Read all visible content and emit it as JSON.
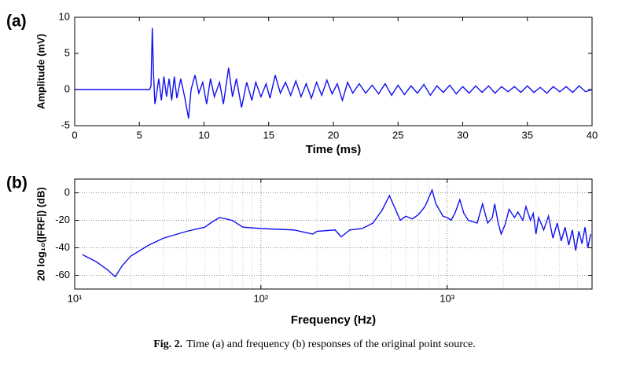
{
  "chart_data": [
    {
      "type": "line",
      "panel_label": "(a)",
      "x_label": "Time (ms)",
      "y_label": "Amplitude (mV)",
      "xlim": [
        0,
        40
      ],
      "xticks": [
        0,
        5,
        10,
        15,
        20,
        25,
        30,
        35,
        40
      ],
      "ylim": [
        -5,
        10
      ],
      "yticks": [
        -5,
        0,
        5,
        10
      ],
      "grid": false,
      "log_x": false,
      "series": [
        {
          "color": "#1010f0",
          "x": [
            0,
            5.8,
            5.9,
            6.0,
            6.1,
            6.2,
            6.3,
            6.5,
            6.7,
            6.9,
            7.1,
            7.3,
            7.5,
            7.7,
            7.9,
            8.2,
            8.5,
            8.8,
            9.0,
            9.3,
            9.6,
            9.9,
            10.2,
            10.5,
            10.8,
            11.2,
            11.5,
            11.9,
            12.2,
            12.5,
            12.9,
            13.3,
            13.7,
            14.0,
            14.4,
            14.8,
            15.1,
            15.5,
            15.9,
            16.3,
            16.7,
            17.1,
            17.5,
            17.9,
            18.3,
            18.7,
            19.1,
            19.5,
            19.9,
            20.3,
            20.7,
            21.1,
            21.5,
            22,
            22.5,
            23,
            23.5,
            24,
            24.5,
            25,
            25.5,
            26,
            26.5,
            27,
            27.5,
            28,
            28.5,
            29,
            29.5,
            30,
            30.5,
            31,
            31.5,
            32,
            32.5,
            33,
            33.5,
            34,
            34.5,
            35,
            35.5,
            36,
            36.5,
            37,
            37.5,
            38,
            38.5,
            39,
            39.5,
            40
          ],
          "values": [
            0,
            0,
            0.5,
            8.5,
            2,
            -2,
            -1,
            1.5,
            -1.5,
            1.8,
            -1,
            1.5,
            -1.5,
            1.8,
            -1.2,
            1.5,
            -1,
            -4,
            0,
            2,
            -0.5,
            1,
            -2,
            1.5,
            -1,
            1,
            -2,
            3,
            -1,
            1.5,
            -2.5,
            1,
            -1.5,
            1,
            -1,
            0.8,
            -1.2,
            2,
            -0.5,
            1,
            -0.8,
            1.2,
            -1,
            0.8,
            -1.2,
            1,
            -0.8,
            1.3,
            -0.6,
            0.8,
            -1.5,
            1,
            -0.5,
            0.8,
            -0.5,
            0.6,
            -0.6,
            0.8,
            -0.8,
            0.6,
            -0.7,
            0.5,
            -0.5,
            0.7,
            -0.8,
            0.5,
            -0.4,
            0.6,
            -0.6,
            0.4,
            -0.5,
            0.5,
            -0.4,
            0.5,
            -0.5,
            0.4,
            -0.3,
            0.4,
            -0.4,
            0.5,
            -0.4,
            0.3,
            -0.5,
            0.4,
            -0.3,
            0.4,
            -0.4,
            0.5,
            -0.3,
            0
          ]
        }
      ]
    },
    {
      "type": "line",
      "panel_label": "(b)",
      "x_label": "Frequency (Hz)",
      "y_label": "20 log₁₀(|FRF|) (dB)",
      "xlim": [
        10,
        6000
      ],
      "xticks": [
        {
          "value": 10,
          "label": "10¹"
        },
        {
          "value": 100,
          "label": "10²"
        },
        {
          "value": 1000,
          "label": "10³"
        }
      ],
      "xminor": [
        20,
        30,
        40,
        50,
        60,
        70,
        80,
        90,
        200,
        300,
        400,
        500,
        600,
        700,
        800,
        900,
        2000,
        3000,
        4000,
        5000
      ],
      "ylim": [
        -70,
        10
      ],
      "yticks": [
        -60,
        -40,
        -20,
        0
      ],
      "grid": true,
      "log_x": true,
      "series": [
        {
          "color": "#1010f0",
          "x": [
            11,
            13,
            15,
            16.5,
            18,
            20,
            25,
            30,
            40,
            50,
            55,
            60,
            70,
            80,
            100,
            150,
            190,
            200,
            250,
            270,
            300,
            350,
            400,
            450,
            490,
            520,
            560,
            600,
            650,
            700,
            760,
            830,
            870,
            950,
            1000,
            1050,
            1100,
            1170,
            1230,
            1300,
            1450,
            1550,
            1650,
            1750,
            1800,
            1880,
            1950,
            2050,
            2150,
            2300,
            2400,
            2550,
            2650,
            2800,
            2900,
            3000,
            3100,
            3300,
            3500,
            3700,
            3900,
            4100,
            4300,
            4500,
            4700,
            4900,
            5100,
            5300,
            5500,
            5700,
            5900
          ],
          "values": [
            -45,
            -50,
            -56,
            -61,
            -53,
            -46,
            -38,
            -33,
            -28,
            -25,
            -21,
            -18,
            -20,
            -25,
            -26,
            -27,
            -30,
            -28,
            -27,
            -32,
            -27,
            -26,
            -22,
            -12,
            -2,
            -10,
            -20,
            -17,
            -19,
            -16,
            -10,
            2,
            -8,
            -17,
            -18,
            -20,
            -15,
            -5,
            -15,
            -20,
            -22,
            -8,
            -22,
            -18,
            -8,
            -22,
            -30,
            -23,
            -12,
            -18,
            -14,
            -20,
            -10,
            -20,
            -15,
            -30,
            -18,
            -27,
            -17,
            -33,
            -22,
            -35,
            -25,
            -38,
            -27,
            -42,
            -28,
            -37,
            -25,
            -40,
            -30
          ]
        }
      ]
    }
  ],
  "caption": {
    "label": "Fig. 2.",
    "text": "Time (a) and frequency (b) responses of the original point source."
  }
}
